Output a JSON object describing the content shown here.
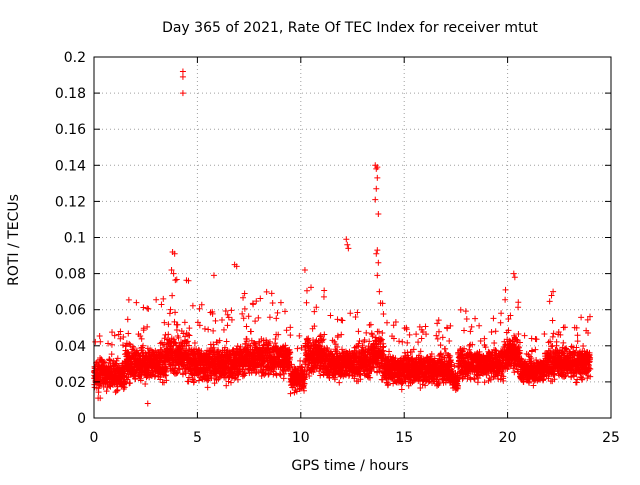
{
  "chart_data": {
    "type": "scatter",
    "title": "Day 365 of 2021, Rate Of TEC Index for receiver mtut",
    "xlabel": "GPS time / hours",
    "ylabel": "ROTI / TECUs",
    "xlim": [
      0,
      25
    ],
    "ylim": [
      0,
      0.2
    ],
    "x_ticks": [
      0,
      5,
      10,
      15,
      20,
      25
    ],
    "x_tick_labels": [
      "0",
      "5",
      "10",
      "15",
      "20",
      "25"
    ],
    "y_ticks": [
      0,
      0.02,
      0.04,
      0.06,
      0.08,
      0.1,
      0.12,
      0.14,
      0.16,
      0.18,
      0.2
    ],
    "y_tick_labels": [
      "0",
      "0.02",
      "0.04",
      "0.06",
      "0.08",
      "0.1",
      "0.12",
      "0.14",
      "0.16",
      "0.18",
      "0.2"
    ],
    "grid": true,
    "marker": "plus",
    "color": "#ff0000",
    "segments": [
      {
        "t0": 0.0,
        "t1": 1.5,
        "base": 0.024,
        "spread": 0.012,
        "peak": 0.048
      },
      {
        "t0": 1.5,
        "t1": 3.5,
        "base": 0.03,
        "spread": 0.014,
        "peak": 0.068
      },
      {
        "t0": 3.5,
        "t1": 4.6,
        "base": 0.034,
        "spread": 0.016,
        "peak": 0.093
      },
      {
        "t0": 4.6,
        "t1": 7.0,
        "base": 0.03,
        "spread": 0.014,
        "peak": 0.065
      },
      {
        "t0": 7.0,
        "t1": 9.5,
        "base": 0.033,
        "spread": 0.013,
        "peak": 0.07
      },
      {
        "t0": 9.5,
        "t1": 10.2,
        "base": 0.022,
        "spread": 0.01,
        "peak": 0.05
      },
      {
        "t0": 10.2,
        "t1": 11.2,
        "base": 0.035,
        "spread": 0.015,
        "peak": 0.073
      },
      {
        "t0": 11.2,
        "t1": 13.4,
        "base": 0.03,
        "spread": 0.013,
        "peak": 0.06
      },
      {
        "t0": 13.4,
        "t1": 14.0,
        "base": 0.035,
        "spread": 0.016,
        "peak": 0.075
      },
      {
        "t0": 14.0,
        "t1": 17.3,
        "base": 0.027,
        "spread": 0.012,
        "peak": 0.055
      },
      {
        "t0": 17.3,
        "t1": 17.6,
        "base": 0.02,
        "spread": 0.006,
        "peak": 0.03
      },
      {
        "t0": 17.6,
        "t1": 19.8,
        "base": 0.03,
        "spread": 0.012,
        "peak": 0.06
      },
      {
        "t0": 19.8,
        "t1": 20.6,
        "base": 0.036,
        "spread": 0.014,
        "peak": 0.066
      },
      {
        "t0": 20.6,
        "t1": 21.8,
        "base": 0.026,
        "spread": 0.01,
        "peak": 0.048
      },
      {
        "t0": 21.8,
        "t1": 22.5,
        "base": 0.03,
        "spread": 0.013,
        "peak": 0.07
      },
      {
        "t0": 22.5,
        "t1": 24.0,
        "base": 0.03,
        "spread": 0.012,
        "peak": 0.058
      }
    ],
    "outliers": [
      {
        "x": 4.3,
        "y": 0.192
      },
      {
        "x": 4.3,
        "y": 0.189
      },
      {
        "x": 4.3,
        "y": 0.18
      },
      {
        "x": 3.8,
        "y": 0.092
      },
      {
        "x": 3.9,
        "y": 0.091
      },
      {
        "x": 3.75,
        "y": 0.082
      },
      {
        "x": 3.85,
        "y": 0.08
      },
      {
        "x": 5.8,
        "y": 0.079
      },
      {
        "x": 6.8,
        "y": 0.085
      },
      {
        "x": 6.9,
        "y": 0.084
      },
      {
        "x": 10.2,
        "y": 0.082
      },
      {
        "x": 12.2,
        "y": 0.099
      },
      {
        "x": 12.25,
        "y": 0.096
      },
      {
        "x": 12.3,
        "y": 0.094
      },
      {
        "x": 13.6,
        "y": 0.14
      },
      {
        "x": 13.7,
        "y": 0.139
      },
      {
        "x": 13.65,
        "y": 0.138
      },
      {
        "x": 13.7,
        "y": 0.133
      },
      {
        "x": 13.65,
        "y": 0.127
      },
      {
        "x": 13.6,
        "y": 0.121
      },
      {
        "x": 13.75,
        "y": 0.113
      },
      {
        "x": 13.7,
        "y": 0.093
      },
      {
        "x": 13.65,
        "y": 0.091
      },
      {
        "x": 13.75,
        "y": 0.086
      },
      {
        "x": 13.7,
        "y": 0.079
      },
      {
        "x": 13.8,
        "y": 0.07
      },
      {
        "x": 20.3,
        "y": 0.08
      },
      {
        "x": 20.35,
        "y": 0.078
      },
      {
        "x": 19.9,
        "y": 0.071
      },
      {
        "x": 22.2,
        "y": 0.07
      },
      {
        "x": 2.6,
        "y": 0.008
      },
      {
        "x": 0.2,
        "y": 0.011
      },
      {
        "x": 0.3,
        "y": 0.011
      }
    ]
  }
}
